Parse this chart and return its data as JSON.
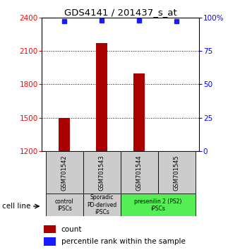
{
  "title": "GDS4141 / 201437_s_at",
  "samples": [
    "GSM701542",
    "GSM701543",
    "GSM701544",
    "GSM701545"
  ],
  "counts": [
    1500,
    2170,
    1900,
    1200
  ],
  "percentiles": [
    97,
    98,
    98,
    97
  ],
  "ylim_left": [
    1200,
    2400
  ],
  "ylim_right": [
    0,
    100
  ],
  "yticks_left": [
    1200,
    1500,
    1800,
    2100,
    2400
  ],
  "yticks_right": [
    0,
    25,
    50,
    75,
    100
  ],
  "bar_color": "#aa0000",
  "dot_color": "#1a1aff",
  "background_color": "#ffffff",
  "cell_line_labels": [
    "control\nIPSCs",
    "Sporadic\nPD-derived\niPSCs",
    "presenilin 2 (PS2)\niPSCs"
  ],
  "cell_line_colors": [
    "#cccccc",
    "#cccccc",
    "#55ee55"
  ],
  "cell_line_spans": [
    [
      0,
      1
    ],
    [
      1,
      2
    ],
    [
      2,
      4
    ]
  ],
  "sample_box_color": "#cccccc",
  "xlabel_text": "cell line",
  "legend_count_label": "count",
  "legend_pct_label": "percentile rank within the sample",
  "bar_width": 0.3,
  "x_positions": [
    1,
    2,
    3,
    4
  ],
  "xlim": [
    0.4,
    4.6
  ]
}
